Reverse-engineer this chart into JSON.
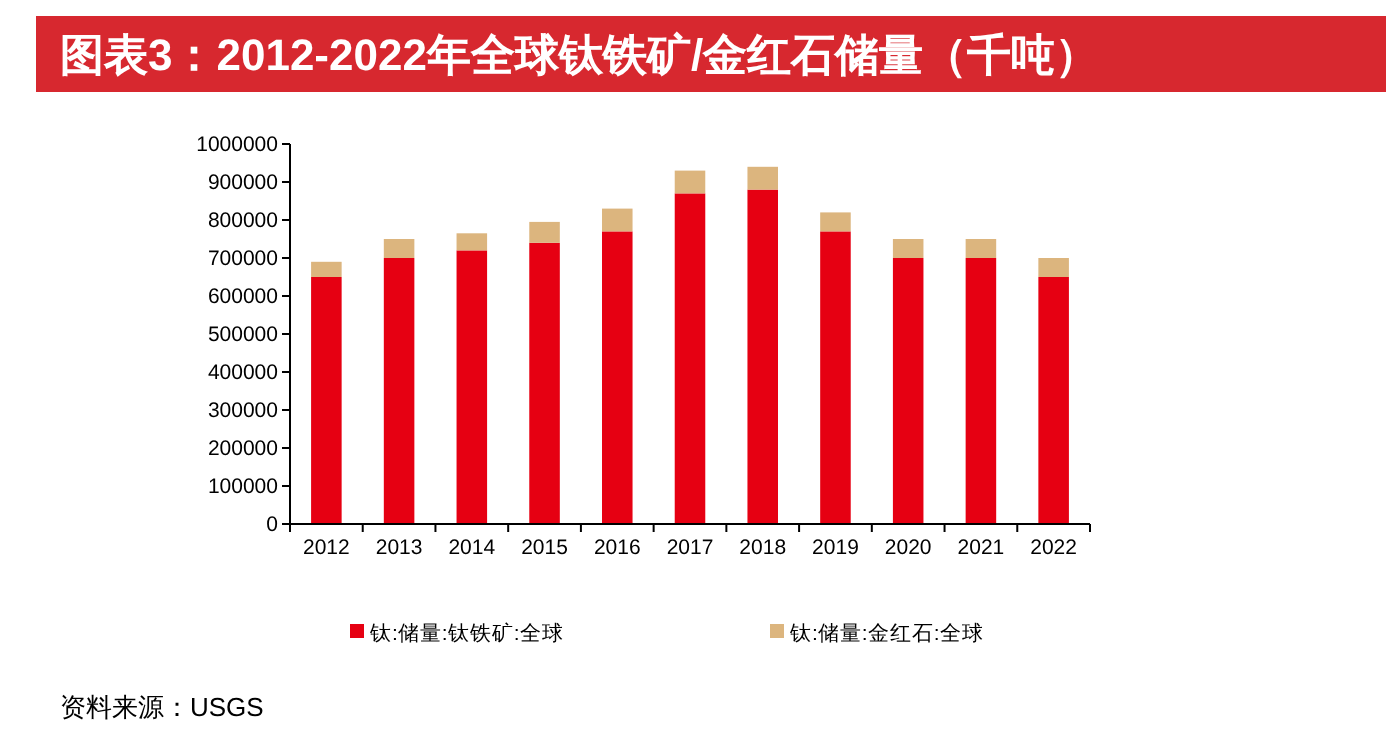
{
  "chart_data": {
    "type": "bar",
    "stacked": true,
    "title": "图表3：2012-2022年全球钛铁矿/金红石储量（千吨）",
    "categories": [
      "2012",
      "2013",
      "2014",
      "2015",
      "2016",
      "2017",
      "2018",
      "2019",
      "2020",
      "2021",
      "2022"
    ],
    "series": [
      {
        "name": "钛:储量:钛铁矿:全球",
        "color": "#e60012",
        "values": [
          650000,
          700000,
          720000,
          740000,
          770000,
          870000,
          880000,
          770000,
          700000,
          700000,
          650000
        ]
      },
      {
        "name": "钛:储量:金红石:全球",
        "color": "#dcb57e",
        "values": [
          40000,
          50000,
          45000,
          55000,
          60000,
          60000,
          60000,
          50000,
          50000,
          50000,
          50000
        ]
      }
    ],
    "ylim": [
      0,
      1000000
    ],
    "yticks": [
      0,
      100000,
      200000,
      300000,
      400000,
      500000,
      600000,
      700000,
      800000,
      900000,
      1000000
    ],
    "legend": "bottom",
    "annotations": [
      "资料来源：USGS"
    ]
  }
}
